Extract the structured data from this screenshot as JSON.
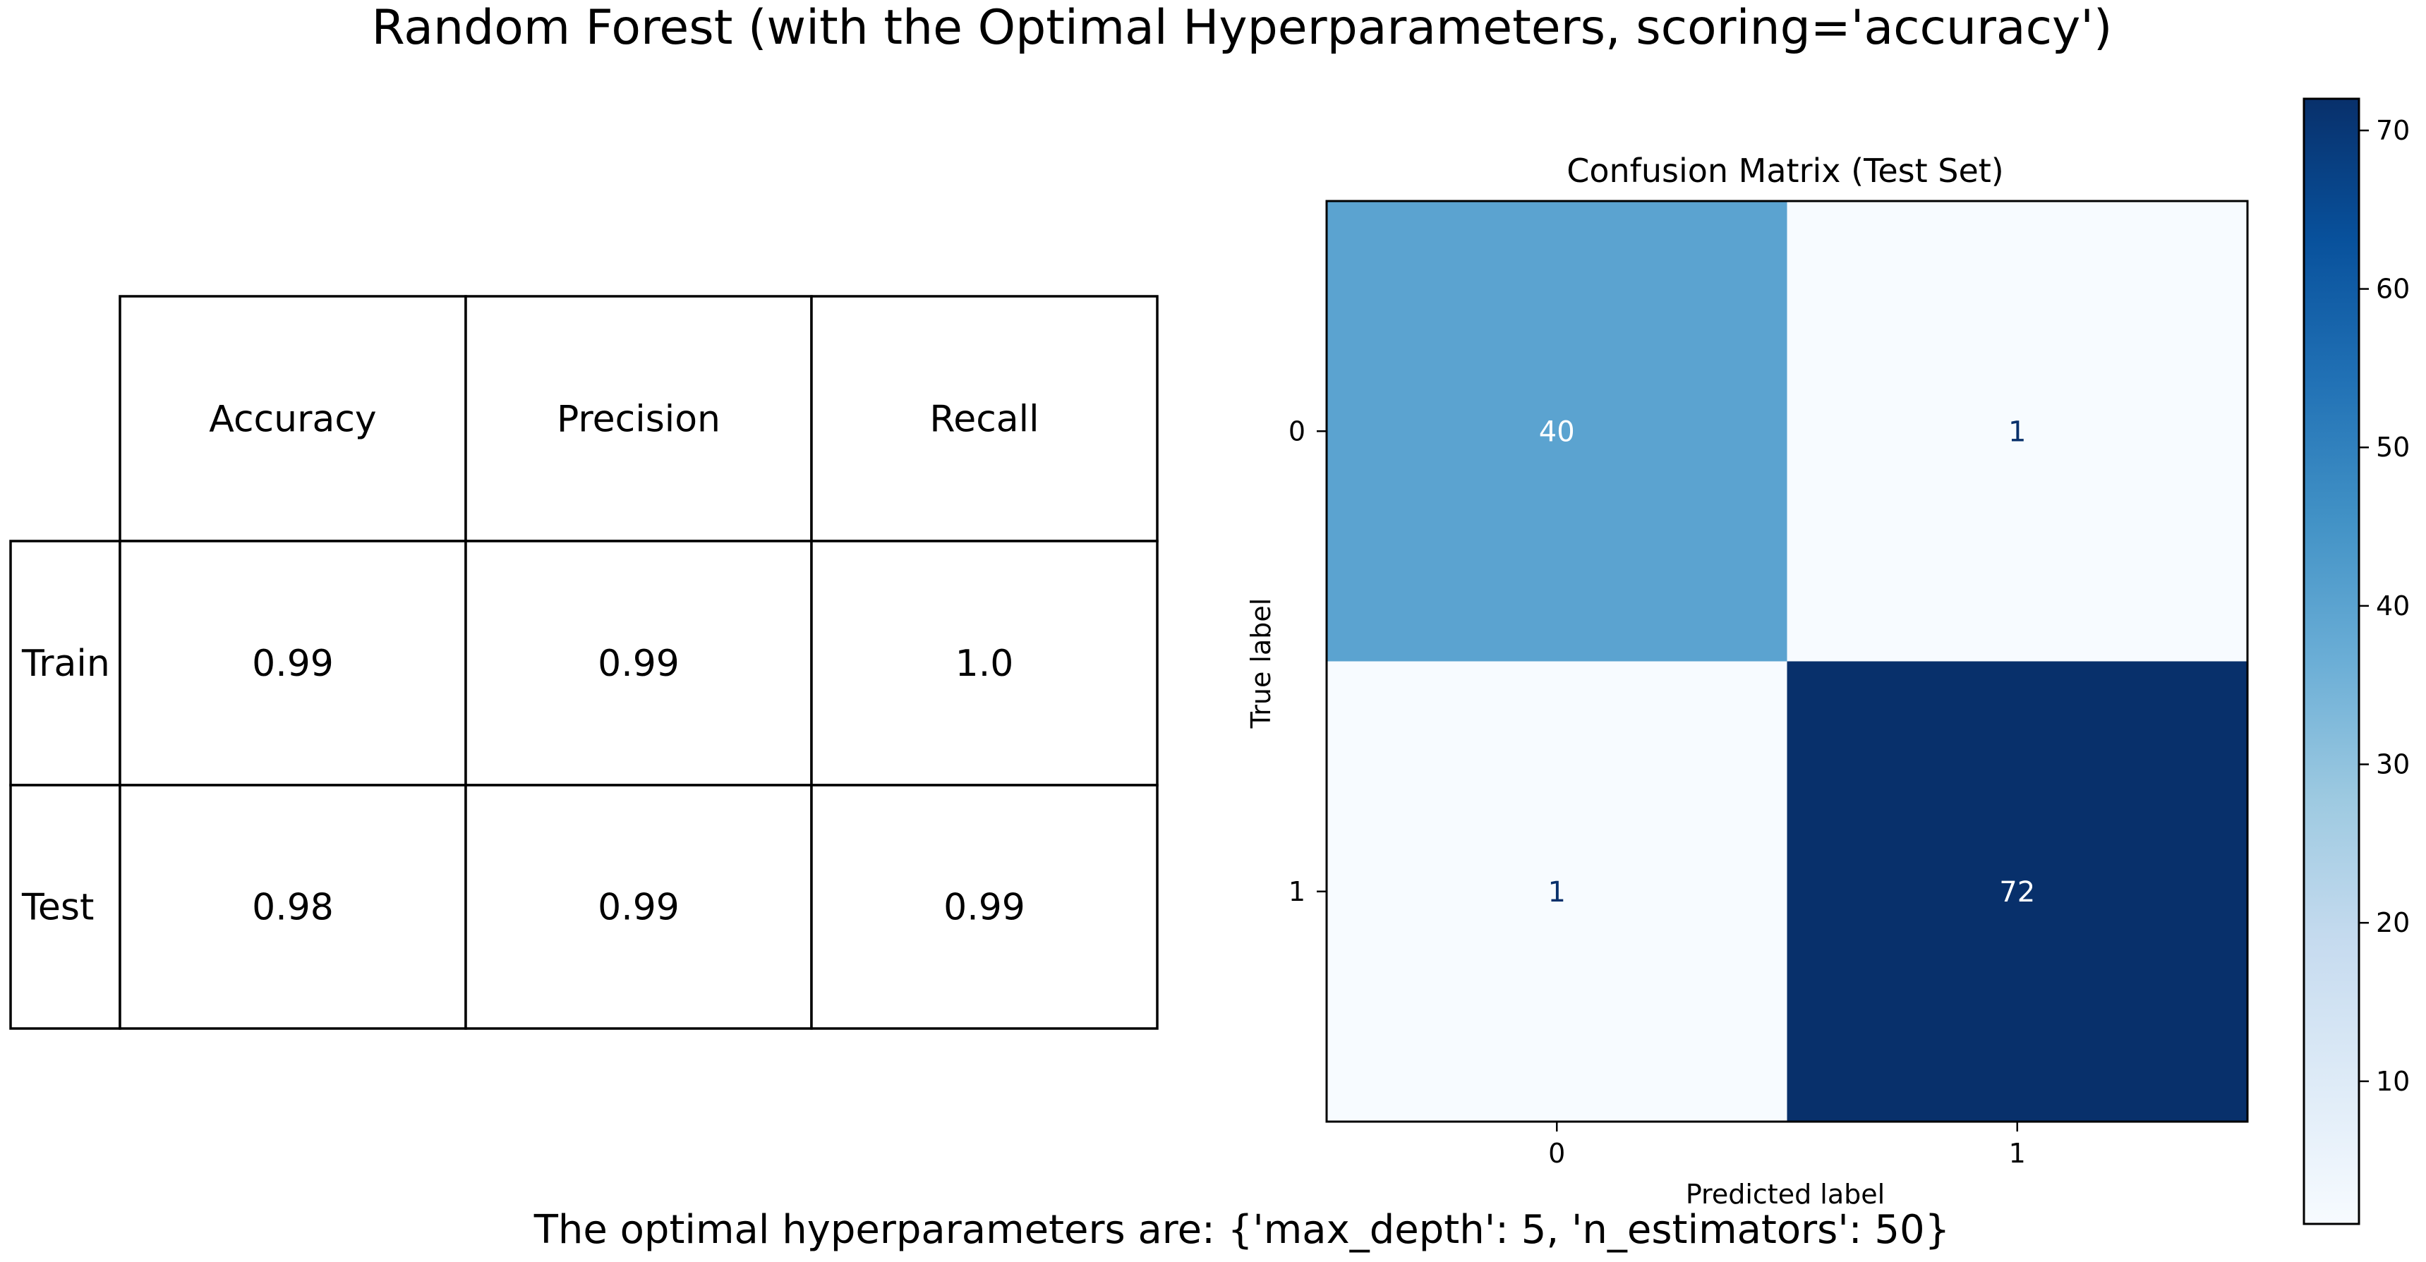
{
  "figure": {
    "title": "Random Forest (with the Optimal Hyperparameters, scoring='accuracy')",
    "footer": "The optimal hyperparameters are: {'max_depth': 5, 'n_estimators': 50}"
  },
  "chart_data": [
    {
      "type": "table",
      "columns": [
        "Accuracy",
        "Precision",
        "Recall"
      ],
      "rows": [
        {
          "label": "Train",
          "values": [
            "0.99",
            "0.99",
            "1.0"
          ]
        },
        {
          "label": "Test",
          "values": [
            "0.98",
            "0.99",
            "0.99"
          ]
        }
      ]
    },
    {
      "type": "heatmap",
      "title": "Confusion Matrix (Test Set)",
      "xlabel": "Predicted label",
      "ylabel": "True label",
      "x_categories": [
        "0",
        "1"
      ],
      "y_categories": [
        "0",
        "1"
      ],
      "values": [
        [
          40,
          1
        ],
        [
          1,
          72
        ]
      ],
      "colormap": "Blues",
      "colorbar": {
        "min": 1,
        "max": 72,
        "ticks": [
          10,
          20,
          30,
          40,
          50,
          60,
          70
        ]
      }
    }
  ]
}
